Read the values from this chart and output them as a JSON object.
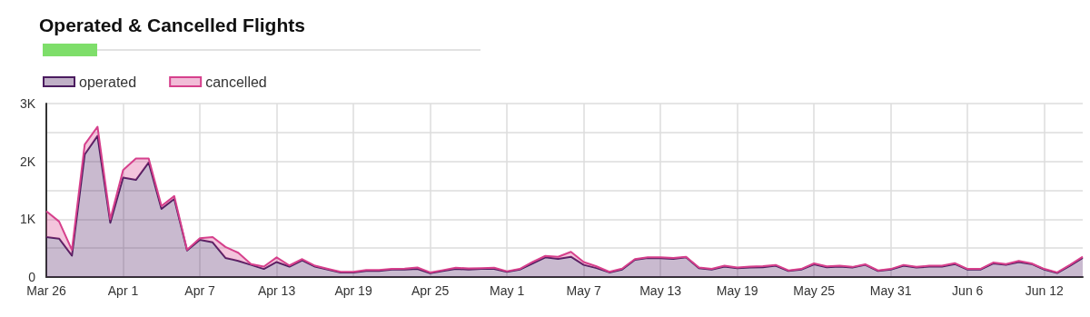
{
  "chart_data": {
    "type": "area",
    "title": "Operated & Cancelled Flights",
    "stacked": true,
    "legend": "top left",
    "grid": true,
    "categories": [
      "Mar 26",
      null,
      null,
      null,
      null,
      null,
      "Apr 1",
      null,
      null,
      null,
      null,
      null,
      "Apr 7",
      null,
      null,
      null,
      null,
      null,
      "Apr 13",
      null,
      null,
      null,
      null,
      null,
      "Apr 19",
      null,
      null,
      null,
      null,
      null,
      "Apr 25",
      null,
      null,
      null,
      null,
      null,
      "May 1",
      null,
      null,
      null,
      null,
      null,
      "May 7",
      null,
      null,
      null,
      null,
      null,
      "May 13",
      null,
      null,
      null,
      null,
      null,
      "May 19",
      null,
      null,
      null,
      null,
      null,
      "May 25",
      null,
      null,
      null,
      null,
      null,
      "May 31",
      null,
      null,
      null,
      null,
      null,
      "Jun 6",
      null,
      null,
      null,
      null,
      null,
      "Jun 12",
      null,
      null,
      null
    ],
    "series": [
      {
        "name": "operated",
        "color": "#4b1c5f",
        "values": [
          690,
          665,
          370,
          2120,
          2440,
          940,
          1720,
          1680,
          1980,
          1180,
          1350,
          460,
          645,
          600,
          330,
          280,
          210,
          140,
          260,
          180,
          290,
          180,
          130,
          80,
          80,
          105,
          105,
          130,
          130,
          140,
          65,
          105,
          140,
          130,
          140,
          140,
          90,
          130,
          235,
          340,
          315,
          350,
          210,
          155,
          80,
          130,
          300,
          330,
          325,
          315,
          340,
          155,
          130,
          180,
          155,
          165,
          170,
          195,
          105,
          130,
          220,
          170,
          180,
          165,
          210,
          105,
          130,
          195,
          165,
          180,
          180,
          225,
          130,
          130,
          235,
          210,
          260,
          225,
          130,
          70,
          195,
          330
        ]
      },
      {
        "name": "cancelled",
        "color": "#d6408c",
        "values": [
          450,
          295,
          100,
          170,
          160,
          60,
          130,
          370,
          70,
          50,
          50,
          10,
          25,
          90,
          190,
          140,
          15,
          40,
          80,
          20,
          20,
          15,
          10,
          10,
          10,
          15,
          15,
          10,
          15,
          25,
          15,
          15,
          20,
          20,
          15,
          20,
          10,
          10,
          25,
          25,
          35,
          85,
          50,
          30,
          10,
          15,
          10,
          10,
          15,
          15,
          10,
          10,
          10,
          15,
          10,
          15,
          20,
          15,
          10,
          10,
          15,
          15,
          15,
          10,
          10,
          10,
          10,
          15,
          10,
          15,
          15,
          15,
          10,
          10,
          15,
          15,
          20,
          10,
          10,
          10,
          15,
          20
        ]
      }
    ],
    "ylim": [
      0,
      3000
    ],
    "yticks": [
      0,
      {
        "value": 500,
        "label": null
      },
      {
        "value": 1000,
        "label": "1K"
      },
      {
        "value": 1500,
        "label": null
      },
      {
        "value": 2000,
        "label": "2K"
      },
      {
        "value": 2500,
        "label": null
      },
      {
        "value": 3000,
        "label": "3K"
      }
    ]
  }
}
